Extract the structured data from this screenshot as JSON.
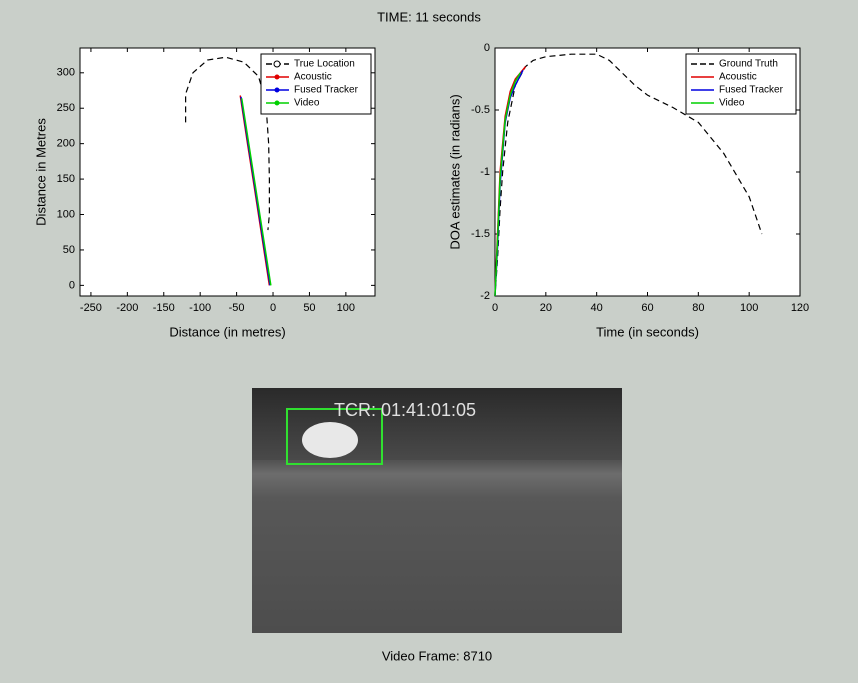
{
  "title": "TIME: 11 seconds",
  "chart_data": [
    {
      "type": "line",
      "xlabel": "Distance (in metres)",
      "ylabel": "Distance in Metres",
      "xlim": [
        -265,
        140
      ],
      "ylim": [
        -15,
        335
      ],
      "xticks": [
        -250,
        -200,
        -150,
        -100,
        -50,
        0,
        50,
        100
      ],
      "yticks": [
        0,
        50,
        100,
        150,
        200,
        250,
        300
      ],
      "grid": false,
      "legend": "upper right",
      "series": [
        {
          "name": "True Location",
          "color": "#000000",
          "dash": true,
          "marker": "o",
          "x": [
            -120,
            -120,
            -110,
            -90,
            -65,
            -40,
            -20,
            -10,
            -6,
            -5,
            -5,
            -7
          ],
          "values": [
            230,
            270,
            300,
            318,
            322,
            315,
            295,
            260,
            200,
            150,
            100,
            78
          ]
        },
        {
          "name": "Acoustic",
          "color": "#e00000",
          "dash": false,
          "marker": ".",
          "x": [
            -45,
            -35,
            -25,
            -15,
            -5
          ],
          "values": [
            268,
            200,
            134,
            67,
            0
          ]
        },
        {
          "name": "Fused Tracker",
          "color": "#0000e0",
          "dash": false,
          "marker": ".",
          "x": [
            -44,
            -34,
            -24,
            -14,
            -4
          ],
          "values": [
            266,
            199,
            133,
            66,
            0
          ]
        },
        {
          "name": "Video",
          "color": "#00d000",
          "dash": false,
          "marker": ".",
          "x": [
            -43,
            -33,
            -23,
            -13,
            -3
          ],
          "values": [
            264,
            198,
            132,
            66,
            0
          ]
        }
      ]
    },
    {
      "type": "line",
      "xlabel": "Time (in seconds)",
      "ylabel": "DOA estimates (in radians)",
      "xlim": [
        0,
        120
      ],
      "ylim": [
        -2,
        0
      ],
      "xticks": [
        0,
        20,
        40,
        60,
        80,
        100,
        120
      ],
      "yticks": [
        0,
        -0.5,
        -1,
        -1.5,
        -2
      ],
      "grid": false,
      "legend": "upper right",
      "series": [
        {
          "name": "Ground Truth",
          "color": "#000000",
          "dash": true,
          "marker": null,
          "x": [
            0,
            1,
            2,
            3,
            5,
            8,
            12,
            15,
            20,
            30,
            40,
            45,
            50,
            55,
            60,
            70,
            80,
            90,
            100,
            105
          ],
          "values": [
            -2,
            -1.7,
            -1.3,
            -1,
            -0.6,
            -0.3,
            -0.15,
            -0.1,
            -0.07,
            -0.05,
            -0.05,
            -0.1,
            -0.2,
            -0.3,
            -0.38,
            -0.48,
            -0.6,
            -0.85,
            -1.2,
            -1.5
          ]
        },
        {
          "name": "Acoustic",
          "color": "#e00000",
          "dash": false,
          "marker": null,
          "x": [
            0,
            1,
            2,
            4,
            6,
            8,
            10,
            12
          ],
          "values": [
            -2,
            -1.5,
            -1.0,
            -0.55,
            -0.35,
            -0.25,
            -0.2,
            -0.15
          ]
        },
        {
          "name": "Fused Tracker",
          "color": "#0000e0",
          "dash": false,
          "marker": null,
          "x": [
            0,
            1,
            2,
            4,
            6,
            8,
            10,
            11
          ],
          "values": [
            -2,
            -1.6,
            -1.1,
            -0.6,
            -0.4,
            -0.3,
            -0.22,
            -0.18
          ]
        },
        {
          "name": "Video",
          "color": "#00d000",
          "dash": false,
          "marker": null,
          "x": [
            0,
            1,
            2,
            4,
            6,
            8,
            10
          ],
          "values": [
            -2,
            -1.55,
            -1.05,
            -0.58,
            -0.38,
            -0.27,
            -0.2
          ]
        }
      ]
    }
  ],
  "video": {
    "timecode": "TCR: 01:41:01:05",
    "caption": "Video Frame: 8710"
  }
}
